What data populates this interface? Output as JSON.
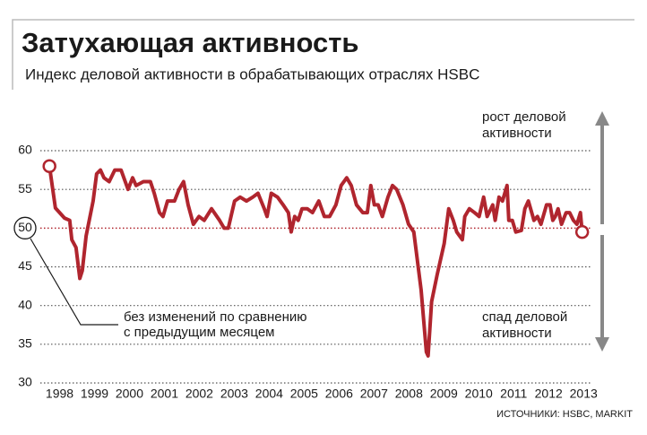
{
  "chart_data": {
    "type": "line",
    "title": "Затухающая активность",
    "subtitle": "Индекс деловой активности в обрабатывающих отраслях HSBC",
    "source": "ИСТОЧНИКИ: HSBC, MARKIT",
    "annotations": {
      "growth": [
        "рост деловой",
        "активности"
      ],
      "decline": [
        "спад деловой",
        "активности"
      ],
      "baseline_note": [
        "без изменений по сравнению",
        "с предыдущим месяцем"
      ]
    },
    "baseline": 50,
    "xlim": [
      1998,
      2013.7
    ],
    "xticks": [
      {
        "value": 1998.5,
        "label": "1998"
      },
      {
        "value": 1999.5,
        "label": "1999"
      },
      {
        "value": 2000.5,
        "label": "2000"
      },
      {
        "value": 2001.5,
        "label": "2001"
      },
      {
        "value": 2002.5,
        "label": "2002"
      },
      {
        "value": 2003.5,
        "label": "2003"
      },
      {
        "value": 2004.5,
        "label": "2004"
      },
      {
        "value": 2005.5,
        "label": "2005"
      },
      {
        "value": 2006.5,
        "label": "2006"
      },
      {
        "value": 2007.5,
        "label": "2007"
      },
      {
        "value": 2008.5,
        "label": "2008"
      },
      {
        "value": 2009.5,
        "label": "2009"
      },
      {
        "value": 2010.5,
        "label": "2010"
      },
      {
        "value": 2011.5,
        "label": "2011"
      },
      {
        "value": 2012.5,
        "label": "2012"
      },
      {
        "value": 2013.5,
        "label": "2013"
      }
    ],
    "ylim": [
      30,
      60
    ],
    "yticks": [
      30,
      35,
      40,
      45,
      50,
      55,
      60
    ],
    "grid": true,
    "color": "#b0252e",
    "x": [
      1998.21,
      1998.38,
      1998.64,
      1998.79,
      1998.85,
      1998.97,
      1999.08,
      1999.15,
      1999.26,
      1999.46,
      1999.56,
      1999.67,
      1999.77,
      1999.92,
      2000.08,
      2000.26,
      2000.38,
      2000.46,
      2000.59,
      2000.69,
      2000.9,
      2001.1,
      2001.21,
      2001.36,
      2001.46,
      2001.59,
      2001.79,
      2001.92,
      2002.05,
      2002.18,
      2002.33,
      2002.49,
      2002.64,
      2002.85,
      2003.08,
      2003.21,
      2003.33,
      2003.51,
      2003.67,
      2003.85,
      2004.03,
      2004.18,
      2004.36,
      2004.44,
      2004.56,
      2004.74,
      2004.9,
      2005.05,
      2005.13,
      2005.23,
      2005.33,
      2005.44,
      2005.59,
      2005.74,
      2005.92,
      2006.08,
      2006.23,
      2006.41,
      2006.56,
      2006.72,
      2006.85,
      2007.0,
      2007.18,
      2007.31,
      2007.41,
      2007.51,
      2007.62,
      2007.74,
      2007.9,
      2008.03,
      2008.15,
      2008.33,
      2008.49,
      2008.64,
      2008.85,
      2009.0,
      2009.05,
      2009.15,
      2009.31,
      2009.51,
      2009.64,
      2009.77,
      2009.87,
      2010.03,
      2010.1,
      2010.23,
      2010.38,
      2010.51,
      2010.64,
      2010.74,
      2010.9,
      2010.97,
      2011.08,
      2011.18,
      2011.31,
      2011.36,
      2011.46,
      2011.56,
      2011.72,
      2011.82,
      2011.92,
      2012.08,
      2012.18,
      2012.28,
      2012.44,
      2012.54,
      2012.62,
      2012.69,
      2012.77,
      2012.87,
      2013.0,
      2013.1,
      2013.21,
      2013.31,
      2013.41,
      2013.46
    ],
    "values": [
      58,
      52.6,
      51.3,
      51,
      48.5,
      47.5,
      43.5,
      44.5,
      49,
      53.5,
      57,
      57.5,
      56.5,
      56,
      57.5,
      57.5,
      56,
      55,
      56.5,
      55.5,
      56,
      56,
      54.5,
      52,
      51.5,
      53.5,
      53.5,
      55,
      56,
      53,
      50.5,
      51.5,
      51,
      52.5,
      51,
      50,
      50,
      53.5,
      54,
      53.5,
      54,
      54.5,
      52.5,
      51.5,
      54.5,
      54,
      53,
      52,
      49.5,
      51.5,
      51,
      52.5,
      52.5,
      52,
      53.5,
      51.5,
      51.5,
      53,
      55.5,
      56.5,
      55.5,
      53,
      52,
      52,
      55.5,
      53,
      53,
      51.5,
      54,
      55.5,
      55,
      53,
      50.5,
      49.5,
      42,
      34,
      33.5,
      40.5,
      44,
      48,
      52.5,
      51,
      49.5,
      48.5,
      51.5,
      52.5,
      52,
      51.5,
      54,
      51.5,
      53,
      51,
      54,
      53.5,
      55.5,
      51,
      51,
      49.5,
      49.7,
      52.5,
      53.5,
      51,
      51.5,
      50.5,
      53,
      53,
      51,
      51.5,
      52.5,
      50.5,
      52,
      52,
      51,
      50.5,
      52,
      49.5
    ]
  }
}
